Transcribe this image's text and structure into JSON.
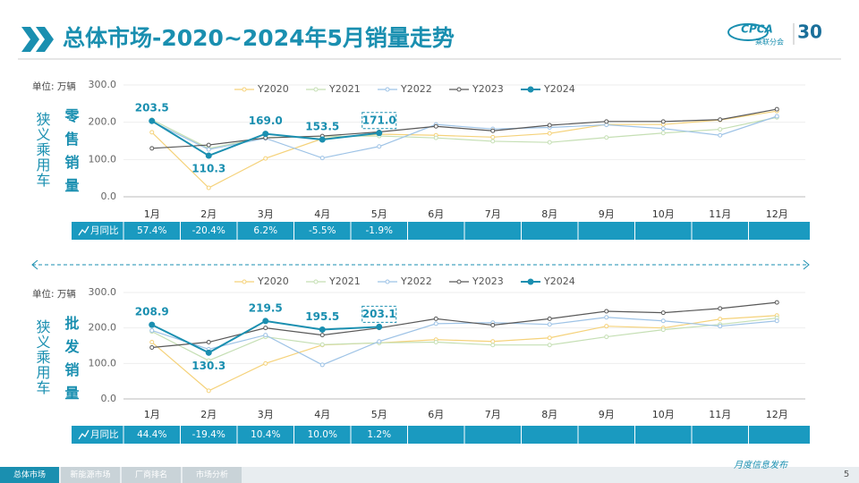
{
  "header": {
    "title": "总体市场-2020~2024年5月销量走势"
  },
  "logo": {
    "name": "CPCA",
    "org": "乘联分会",
    "anniversary": "30"
  },
  "chart_data": [
    {
      "type": "line",
      "unit": "单位: 万辆",
      "side_label": "狭义乘用车",
      "metric_label": "零售销量",
      "categories": [
        "1月",
        "2月",
        "3月",
        "4月",
        "5月",
        "6月",
        "7月",
        "8月",
        "9月",
        "10月",
        "11月",
        "12月"
      ],
      "ylim": [
        0,
        300
      ],
      "yticks": [
        {
          "value": 0,
          "label": "0.0"
        },
        {
          "value": 100,
          "label": "100.0"
        },
        {
          "value": 200,
          "label": "200.0"
        },
        {
          "value": 300,
          "label": "300.0"
        }
      ],
      "series": [
        {
          "name": "Y2020",
          "color": "#f5d27a",
          "values": [
            173,
            24,
            103,
            156,
            168,
            165,
            160,
            170,
            194,
            194,
            206,
            230
          ]
        },
        {
          "name": "Y2021",
          "color": "#c5dfb4",
          "values": [
            207,
            130,
            159,
            162,
            163,
            158,
            149,
            146,
            159,
            171,
            181,
            213
          ]
        },
        {
          "name": "Y2022",
          "color": "#9ec3e6",
          "values": [
            202,
            127,
            157,
            104,
            135,
            194,
            182,
            186,
            193,
            183,
            165,
            216
          ]
        },
        {
          "name": "Y2023",
          "color": "#595959",
          "values": [
            130,
            139,
            158,
            163,
            174,
            189,
            177,
            192,
            202,
            202,
            207,
            235
          ]
        },
        {
          "name": "Y2024",
          "color": "#1a8fb0",
          "values": [
            203.5,
            110.3,
            169.0,
            153.5,
            171.0,
            null,
            null,
            null,
            null,
            null,
            null,
            null
          ],
          "value_labels": [
            "203.5",
            "110.3",
            "169.0",
            "153.5",
            "171.0",
            null,
            null,
            null,
            null,
            null,
            null,
            null
          ]
        }
      ],
      "yoy": {
        "label": "月同比",
        "cells": [
          "57.4%",
          "-20.4%",
          "6.2%",
          "-5.5%",
          "-1.9%",
          null,
          null,
          null,
          null,
          null,
          null,
          null
        ]
      }
    },
    {
      "type": "line",
      "unit": "单位: 万辆",
      "side_label": "狭义乘用车",
      "metric_label": "批发销量",
      "categories": [
        "1月",
        "2月",
        "3月",
        "4月",
        "5月",
        "6月",
        "7月",
        "8月",
        "9月",
        "10月",
        "11月",
        "12月"
      ],
      "ylim": [
        0,
        300
      ],
      "yticks": [
        {
          "value": 0,
          "label": "0.0"
        },
        {
          "value": 100,
          "label": "100.0"
        },
        {
          "value": 200,
          "label": "200.0"
        },
        {
          "value": 300,
          "label": "300.0"
        }
      ],
      "series": [
        {
          "name": "Y2020",
          "color": "#f5d27a",
          "values": [
            160,
            23,
            100,
            152,
            158,
            167,
            162,
            172,
            205,
            200,
            225,
            235
          ]
        },
        {
          "name": "Y2021",
          "color": "#c5dfb4",
          "values": [
            190,
            108,
            175,
            153,
            158,
            160,
            152,
            152,
            175,
            195,
            210,
            228
          ]
        },
        {
          "name": "Y2022",
          "color": "#9ec3e6",
          "values": [
            193,
            140,
            180,
            96,
            162,
            212,
            215,
            210,
            230,
            220,
            205,
            220
          ]
        },
        {
          "name": "Y2023",
          "color": "#595959",
          "values": [
            145,
            160,
            200,
            180,
            200,
            226,
            208,
            226,
            247,
            243,
            255,
            272
          ]
        },
        {
          "name": "Y2024",
          "color": "#1a8fb0",
          "values": [
            208.9,
            130.3,
            219.5,
            195.5,
            203.1,
            null,
            null,
            null,
            null,
            null,
            null,
            null
          ],
          "value_labels": [
            "208.9",
            "130.3",
            "219.5",
            "195.5",
            "203.1",
            null,
            null,
            null,
            null,
            null,
            null,
            null
          ]
        }
      ],
      "yoy": {
        "label": "月同比",
        "cells": [
          "44.4%",
          "-19.4%",
          "10.4%",
          "10.0%",
          "1.2%",
          null,
          null,
          null,
          null,
          null,
          null,
          null
        ]
      }
    }
  ],
  "footer": {
    "tabs": [
      "总体市场",
      "新能源市场",
      "厂商排名",
      "市场分析"
    ],
    "note": "月度信息发布",
    "page": "5"
  }
}
